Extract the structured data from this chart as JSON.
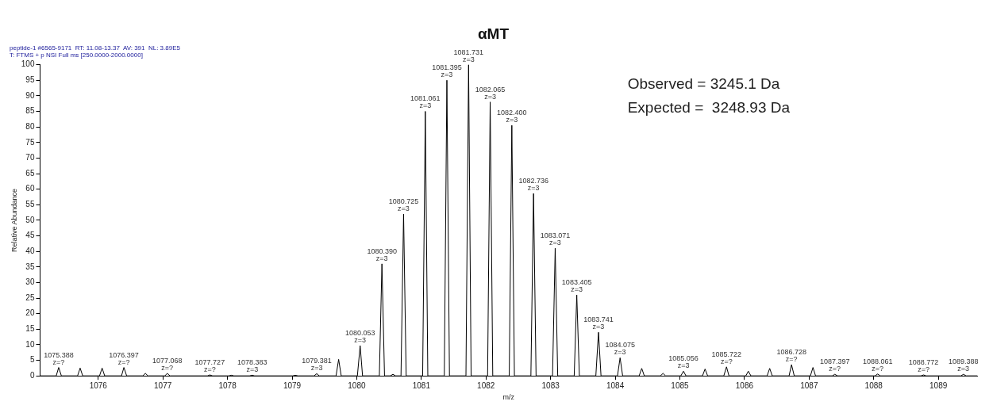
{
  "chart_data": {
    "type": "line",
    "title": "αMT",
    "subtitle": "peptide-1 #6565-9171  RT: 11.08-13.37  AV: 391  NL: 3.89E5\nT: FTMS + p NSI Full ms [250.0000-2000.0000]",
    "xlabel": "m/z",
    "ylabel": "Relative Abundance",
    "series": [
      {
        "color": "#000000",
        "x": [
          1075.1,
          1075.35,
          1075.388,
          1075.43,
          1075.68,
          1075.72,
          1075.76,
          1076.02,
          1076.06,
          1076.1,
          1076.36,
          1076.397,
          1076.44,
          1076.69,
          1076.73,
          1076.77,
          1077.03,
          1077.068,
          1077.11,
          1077.69,
          1077.727,
          1077.77,
          1078.02,
          1078.06,
          1078.1,
          1078.34,
          1078.383,
          1078.42,
          1079.01,
          1079.05,
          1079.09,
          1079.34,
          1079.381,
          1079.42,
          1079.68,
          1079.72,
          1079.76,
          1080.01,
          1080.053,
          1080.09,
          1080.35,
          1080.39,
          1080.43,
          1080.52,
          1080.56,
          1080.6,
          1080.685,
          1080.725,
          1080.765,
          1081.02,
          1081.061,
          1081.1,
          1081.355,
          1081.395,
          1081.435,
          1081.69,
          1081.731,
          1081.77,
          1082.025,
          1082.065,
          1082.105,
          1082.36,
          1082.4,
          1082.44,
          1082.695,
          1082.736,
          1082.775,
          1083.03,
          1083.071,
          1083.11,
          1083.365,
          1083.405,
          1083.445,
          1083.7,
          1083.741,
          1083.78,
          1084.035,
          1084.075,
          1084.115,
          1084.37,
          1084.41,
          1084.45,
          1084.7,
          1084.74,
          1084.78,
          1085.015,
          1085.056,
          1085.095,
          1085.35,
          1085.39,
          1085.43,
          1085.68,
          1085.722,
          1085.76,
          1086.02,
          1086.06,
          1086.1,
          1086.35,
          1086.39,
          1086.43,
          1086.69,
          1086.728,
          1086.77,
          1087.02,
          1087.06,
          1087.1,
          1087.36,
          1087.397,
          1087.44,
          1088.02,
          1088.061,
          1088.1,
          1088.73,
          1088.772,
          1088.81,
          1089.35,
          1089.388,
          1089.43,
          1089.6
        ],
        "values": [
          0,
          0,
          2.7,
          0,
          0,
          2.5,
          0,
          0,
          2.5,
          0,
          0,
          2.7,
          0,
          0,
          0.8,
          0,
          0,
          0.8,
          0,
          0,
          0.3,
          0,
          0,
          0.2,
          0,
          0,
          0.2,
          0,
          0,
          0.2,
          0,
          0,
          0.7,
          0,
          0,
          5.3,
          0,
          0,
          9.7,
          0,
          0,
          36,
          0,
          0,
          0.5,
          0,
          0,
          52,
          0,
          0,
          85,
          0,
          0,
          95,
          0,
          0,
          100,
          0,
          0,
          88,
          0,
          0,
          80.5,
          0,
          0,
          58.6,
          0,
          0,
          41,
          0,
          0,
          26,
          0,
          0,
          14,
          0,
          0,
          5.8,
          0,
          0,
          2.4,
          0,
          0,
          0.8,
          0,
          0,
          1.5,
          0,
          0,
          2.2,
          0,
          0,
          2.9,
          0,
          0,
          1.5,
          0,
          0,
          2.4,
          0,
          0,
          3.6,
          0,
          0,
          2.7,
          0,
          0,
          0.5,
          0,
          0,
          0.6,
          0,
          0,
          0.3,
          0,
          0,
          0.5,
          0,
          0
        ]
      }
    ],
    "xlim": [
      1075.1,
      1089.6
    ],
    "xticks": [
      1076,
      1077,
      1078,
      1079,
      1080,
      1081,
      1082,
      1083,
      1084,
      1085,
      1086,
      1087,
      1088,
      1089
    ],
    "ylim": [
      0,
      100
    ],
    "yticks": [
      0,
      5,
      10,
      15,
      20,
      25,
      30,
      35,
      40,
      45,
      50,
      55,
      60,
      65,
      70,
      75,
      80,
      85,
      90,
      95,
      100
    ],
    "grid": false,
    "legend": false,
    "marker": "none",
    "line_style": "solid",
    "annotations": [
      "Observed = 3245.1 Da",
      "Expected =  3248.93 Da",
      {
        "text": "1075.388\nz=?",
        "x": 1075.388,
        "y": 2.7
      },
      {
        "text": "1076.397\nz=?",
        "x": 1076.397,
        "y": 2.7
      },
      {
        "text": "1077.068\nz=?",
        "x": 1077.068,
        "y": 0.8
      },
      {
        "text": "1077.727\nz=?",
        "x": 1077.727,
        "y": 0.3
      },
      {
        "text": "1078.383\nz=3",
        "x": 1078.383,
        "y": 0.2
      },
      {
        "text": "1079.381\nz=3",
        "x": 1079.381,
        "y": 0.7
      },
      {
        "text": "1080.053\nz=3",
        "x": 1080.053,
        "y": 9.7
      },
      {
        "text": "1080.390\nz=3",
        "x": 1080.39,
        "y": 36
      },
      {
        "text": "1080.725\nz=3",
        "x": 1080.725,
        "y": 52
      },
      {
        "text": "1081.061\nz=3",
        "x": 1081.061,
        "y": 85
      },
      {
        "text": "1081.395\nz=3",
        "x": 1081.395,
        "y": 95
      },
      {
        "text": "1081.731\nz=3",
        "x": 1081.731,
        "y": 100
      },
      {
        "text": "1082.065\nz=3",
        "x": 1082.065,
        "y": 88
      },
      {
        "text": "1082.400\nz=3",
        "x": 1082.4,
        "y": 80.5
      },
      {
        "text": "1082.736\nz=3",
        "x": 1082.736,
        "y": 58.6
      },
      {
        "text": "1083.071\nz=3",
        "x": 1083.071,
        "y": 41
      },
      {
        "text": "1083.405\nz=3",
        "x": 1083.405,
        "y": 26
      },
      {
        "text": "1083.741\nz=3",
        "x": 1083.741,
        "y": 14
      },
      {
        "text": "1084.075\nz=3",
        "x": 1084.075,
        "y": 5.8
      },
      {
        "text": "1085.056\nz=3",
        "x": 1085.056,
        "y": 1.5
      },
      {
        "text": "1085.722\nz=?",
        "x": 1085.722,
        "y": 2.9
      },
      {
        "text": "1086.728\nz=?",
        "x": 1086.728,
        "y": 3.6
      },
      {
        "text": "1087.397\nz=?",
        "x": 1087.397,
        "y": 0.5
      },
      {
        "text": "1088.061\nz=?",
        "x": 1088.061,
        "y": 0.6
      },
      {
        "text": "1088.772\nz=?",
        "x": 1088.772,
        "y": 0.3
      },
      {
        "text": "1089.388\nz=3",
        "x": 1089.388,
        "y": 0.5
      }
    ]
  }
}
